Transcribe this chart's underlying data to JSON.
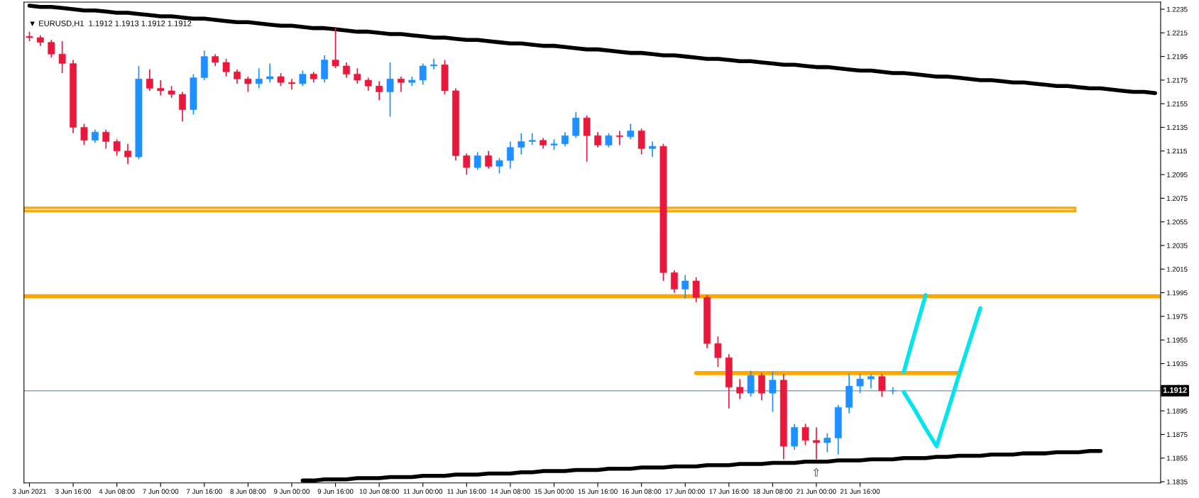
{
  "chart_data": {
    "type": "candlestick",
    "title": "▼ EURUSD,H1  1.1912 1.1913 1.1912 1.1912",
    "categories": [
      "3 Jun 2021",
      null,
      null,
      null,
      "3 Jun 16:00",
      null,
      null,
      null,
      "4 Jun 08:00",
      null,
      null,
      null,
      "7 Jun 00:00",
      null,
      null,
      null,
      "7 Jun 16:00",
      null,
      null,
      null,
      "8 Jun 08:00",
      null,
      null,
      null,
      "9 Jun 00:00",
      null,
      null,
      null,
      "9 Jun 16:00",
      null,
      null,
      null,
      "10 Jun 08:00",
      null,
      null,
      null,
      "11 Jun 00:00",
      null,
      null,
      null,
      "11 Jun 16:00",
      null,
      null,
      null,
      "14 Jun 08:00",
      null,
      null,
      null,
      "15 Jun 00:00",
      null,
      null,
      null,
      "15 Jun 16:00",
      null,
      null,
      null,
      "16 Jun 08:00",
      null,
      null,
      null,
      "17 Jun 00:00",
      null,
      null,
      null,
      "17 Jun 16:00",
      null,
      null,
      null,
      "18 Jun 08:00",
      null,
      null,
      null,
      "21 Jun 00:00",
      null,
      null,
      null,
      "21 Jun 16:00",
      null,
      null,
      null,
      null,
      null,
      null,
      null,
      null,
      null,
      null,
      null,
      null,
      null,
      null,
      null,
      null,
      null,
      null,
      null,
      null,
      null,
      null,
      null,
      null,
      null,
      null,
      null
    ],
    "ohlc": [
      [
        1.2212,
        1.2216,
        1.2208,
        1.2211
      ],
      [
        1.2211,
        1.2213,
        1.2204,
        1.2207
      ],
      [
        1.2207,
        1.2209,
        1.2194,
        1.2197
      ],
      [
        1.2197,
        1.2208,
        1.2181,
        1.2189
      ],
      [
        1.2189,
        1.2192,
        1.213,
        1.2135
      ],
      [
        1.2135,
        1.2138,
        1.212,
        1.2124
      ],
      [
        1.2124,
        1.2133,
        1.2122,
        1.2131
      ],
      [
        1.2131,
        1.2133,
        1.2117,
        1.2123
      ],
      [
        1.2123,
        1.2125,
        1.2111,
        1.2115
      ],
      [
        1.2115,
        1.2121,
        1.2104,
        1.211
      ],
      [
        1.211,
        1.2187,
        1.2108,
        1.2176
      ],
      [
        1.2176,
        1.2184,
        1.2166,
        1.2168
      ],
      [
        1.2168,
        1.2175,
        1.2162,
        1.2166
      ],
      [
        1.2166,
        1.217,
        1.216,
        1.2163
      ],
      [
        1.2163,
        1.2165,
        1.214,
        1.215
      ],
      [
        1.215,
        1.218,
        1.2146,
        1.2177
      ],
      [
        1.2177,
        1.22,
        1.2175,
        1.2195
      ],
      [
        1.2195,
        1.2197,
        1.2187,
        1.219
      ],
      [
        1.219,
        1.2193,
        1.2178,
        1.2182
      ],
      [
        1.2182,
        1.2184,
        1.2172,
        1.2176
      ],
      [
        1.2176,
        1.2178,
        1.2165,
        1.2172
      ],
      [
        1.2172,
        1.2185,
        1.2168,
        1.2176
      ],
      [
        1.2176,
        1.2189,
        1.2173,
        1.2178
      ],
      [
        1.2178,
        1.2181,
        1.217,
        1.2173
      ],
      [
        1.2173,
        1.2176,
        1.2167,
        1.2172
      ],
      [
        1.2172,
        1.2183,
        1.217,
        1.218
      ],
      [
        1.218,
        1.2182,
        1.2173,
        1.2176
      ],
      [
        1.2176,
        1.2196,
        1.2173,
        1.2192
      ],
      [
        1.2192,
        1.2219,
        1.2185,
        1.2187
      ],
      [
        1.2187,
        1.219,
        1.2177,
        1.218
      ],
      [
        1.218,
        1.2185,
        1.2172,
        1.2175
      ],
      [
        1.2175,
        1.2177,
        1.2166,
        1.217
      ],
      [
        1.217,
        1.2174,
        1.2158,
        1.2165
      ],
      [
        1.2165,
        1.219,
        1.2144,
        1.2176
      ],
      [
        1.2176,
        1.2178,
        1.2165,
        1.2173
      ],
      [
        1.2173,
        1.2178,
        1.217,
        1.2175
      ],
      [
        1.2175,
        1.2189,
        1.2171,
        1.2187
      ],
      [
        1.2187,
        1.2193,
        1.2184,
        1.2188
      ],
      [
        1.2188,
        1.2192,
        1.2163,
        1.2166
      ],
      [
        1.2166,
        1.2168,
        1.2107,
        1.2111
      ],
      [
        1.2111,
        1.2113,
        1.2095,
        1.2101
      ],
      [
        1.2101,
        1.2114,
        1.2099,
        1.2111
      ],
      [
        1.2111,
        1.2115,
        1.21,
        1.2102
      ],
      [
        1.2102,
        1.2109,
        1.2096,
        1.2107
      ],
      [
        1.2107,
        1.2123,
        1.21,
        1.2118
      ],
      [
        1.2118,
        1.213,
        1.2112,
        1.2123
      ],
      [
        1.2123,
        1.213,
        1.212,
        1.2124
      ],
      [
        1.2124,
        1.2126,
        1.2117,
        1.212
      ],
      [
        1.212,
        1.2125,
        1.2116,
        1.2121
      ],
      [
        1.2121,
        1.2131,
        1.2119,
        1.2128
      ],
      [
        1.2128,
        1.2148,
        1.2126,
        1.2143
      ],
      [
        1.2143,
        1.2145,
        1.2106,
        1.2128
      ],
      [
        1.2128,
        1.2131,
        1.2118,
        1.212
      ],
      [
        1.212,
        1.213,
        1.2118,
        1.2128
      ],
      [
        1.2128,
        1.2132,
        1.212,
        1.2127
      ],
      [
        1.2127,
        1.2138,
        1.2125,
        1.2132
      ],
      [
        1.2132,
        1.2134,
        1.2112,
        1.2117
      ],
      [
        1.2117,
        1.2123,
        1.211,
        1.2119
      ],
      [
        1.2119,
        1.2121,
        1.2005,
        1.2012
      ],
      [
        1.2012,
        1.2014,
        1.1995,
        1.1998
      ],
      [
        1.1998,
        1.201,
        1.199,
        1.2005
      ],
      [
        1.2005,
        1.2008,
        1.1987,
        1.1991
      ],
      [
        1.1991,
        1.1993,
        1.1948,
        1.1952
      ],
      [
        1.1952,
        1.1958,
        1.1932,
        1.194
      ],
      [
        1.194,
        1.1943,
        1.1897,
        1.1915
      ],
      [
        1.1915,
        1.1922,
        1.1905,
        1.191
      ],
      [
        1.191,
        1.1929,
        1.1907,
        1.1925
      ],
      [
        1.1925,
        1.1927,
        1.1904,
        1.191
      ],
      [
        1.191,
        1.1928,
        1.1894,
        1.1921
      ],
      [
        1.1921,
        1.1926,
        1.1854,
        1.1865
      ],
      [
        1.1865,
        1.1884,
        1.1862,
        1.1881
      ],
      [
        1.1881,
        1.1884,
        1.1866,
        1.187
      ],
      [
        1.187,
        1.1881,
        1.1854,
        1.1868
      ],
      [
        1.1868,
        1.1876,
        1.186,
        1.1872
      ],
      [
        1.1872,
        1.19,
        1.1858,
        1.1898
      ],
      [
        1.1898,
        1.1926,
        1.1893,
        1.1916
      ],
      [
        1.1916,
        1.1926,
        1.191,
        1.1922
      ],
      [
        1.1922,
        1.1926,
        1.1914,
        1.1924
      ],
      [
        1.1924,
        1.1926,
        1.1907,
        1.1912
      ],
      [
        1.1912,
        1.1915,
        1.1909,
        1.1912
      ],
      null,
      null,
      null,
      null,
      null,
      null,
      null,
      null,
      null,
      null,
      null,
      null,
      null,
      null,
      null,
      null,
      null,
      null,
      null,
      null,
      null,
      null,
      null,
      null
    ],
    "colors": [
      "#e8193c",
      "#e8193c",
      "#e8193c",
      "#e8193c",
      "#e8193c",
      "#e8193c",
      "#1e90ff",
      "#e8193c",
      "#e8193c",
      "#e8193c",
      "#1e90ff",
      "#e8193c",
      "#e8193c",
      "#e8193c",
      "#e8193c",
      "#1e90ff",
      "#1e90ff",
      "#e8193c",
      "#e8193c",
      "#e8193c",
      "#e8193c",
      "#1e90ff",
      "#1e90ff",
      "#e8193c",
      "#e8193c",
      "#1e90ff",
      "#e8193c",
      "#1e90ff",
      "#e8193c",
      "#e8193c",
      "#e8193c",
      "#e8193c",
      "#e8193c",
      "#1e90ff",
      "#e8193c",
      "#1e90ff",
      "#1e90ff",
      "#1e90ff",
      "#e8193c",
      "#e8193c",
      "#e8193c",
      "#1e90ff",
      "#e8193c",
      "#1e90ff",
      "#1e90ff",
      "#1e90ff",
      "#1e90ff",
      "#e8193c",
      "#1e90ff",
      "#1e90ff",
      "#1e90ff",
      "#e8193c",
      "#e8193c",
      "#1e90ff",
      "#e8193c",
      "#1e90ff",
      "#e8193c",
      "#1e90ff",
      "#e8193c",
      "#e8193c",
      "#1e90ff",
      "#e8193c",
      "#e8193c",
      "#e8193c",
      "#e8193c",
      "#e8193c",
      "#1e90ff",
      "#e8193c",
      "#1e90ff",
      "#e8193c",
      "#1e90ff",
      "#e8193c",
      "#e8193c",
      "#1e90ff",
      "#1e90ff",
      "#1e90ff",
      "#1e90ff",
      "#1e90ff",
      "#e8193c",
      "#1e90ff",
      null,
      null,
      null,
      null,
      null,
      null,
      null,
      null,
      null,
      null,
      null,
      null,
      null,
      null,
      null,
      null,
      null,
      null,
      null,
      null,
      null,
      null,
      null,
      null
    ],
    "series": [
      {
        "type": "line",
        "color": "#000000",
        "values": [
          1.2238,
          1.2237,
          1.2237,
          1.2236,
          1.2235,
          1.2234,
          1.2234,
          1.2233,
          1.2232,
          1.2232,
          1.2231,
          1.223,
          1.2229,
          1.2229,
          1.2228,
          1.2227,
          1.2227,
          1.2226,
          1.2225,
          1.2224,
          1.2224,
          1.2223,
          1.2222,
          1.2221,
          1.2221,
          1.222,
          1.2219,
          1.2219,
          1.2218,
          1.2217,
          1.2216,
          1.2216,
          1.2215,
          1.2214,
          1.2214,
          1.2213,
          1.2212,
          1.2211,
          1.2211,
          1.221,
          1.2209,
          1.2209,
          1.2208,
          1.2207,
          1.2206,
          1.2206,
          1.2205,
          1.2204,
          1.2204,
          1.2203,
          1.2202,
          1.2201,
          1.2201,
          1.22,
          1.2199,
          1.2198,
          1.2198,
          1.2197,
          1.2196,
          1.2196,
          1.2195,
          1.2194,
          1.2193,
          1.2193,
          1.2192,
          1.2191,
          1.2191,
          1.219,
          1.2189,
          1.2188,
          1.2188,
          1.2187,
          1.2186,
          1.2186,
          1.2185,
          1.2184,
          1.2183,
          1.2183,
          1.2182,
          1.2181,
          1.2181,
          1.218,
          1.2179,
          1.2178,
          1.2178,
          1.2177,
          1.2176,
          1.2175,
          1.2175,
          1.2174,
          1.2173,
          1.2173,
          1.2172,
          1.2171,
          1.217,
          1.217,
          1.2169,
          1.2168,
          1.2168,
          1.2167,
          1.2166,
          1.2165,
          1.2165,
          1.2164
        ]
      },
      {
        "type": "line",
        "color": "#000000",
        "values": [
          null,
          null,
          null,
          null,
          null,
          null,
          null,
          null,
          null,
          null,
          null,
          null,
          null,
          null,
          null,
          null,
          null,
          null,
          null,
          null,
          null,
          null,
          null,
          null,
          null,
          1.1836,
          1.1836,
          1.1837,
          1.1837,
          1.1837,
          1.1838,
          1.1838,
          1.1838,
          1.1839,
          1.1839,
          1.1839,
          1.184,
          1.184,
          1.184,
          1.1841,
          1.1841,
          1.1841,
          1.1842,
          1.1842,
          1.1842,
          1.1843,
          1.1843,
          1.1844,
          1.1844,
          1.1844,
          1.1845,
          1.1845,
          1.1845,
          1.1846,
          1.1846,
          1.1846,
          1.1847,
          1.1847,
          1.1847,
          1.1848,
          1.1848,
          1.1848,
          1.1849,
          1.1849,
          1.1849,
          1.185,
          1.185,
          1.185,
          1.1851,
          1.1851,
          1.1851,
          1.1852,
          1.1852,
          1.1852,
          1.1853,
          1.1853,
          1.1853,
          1.1854,
          1.1854,
          1.1854,
          1.1855,
          1.1855,
          1.1855,
          1.1856,
          1.1856,
          1.1857,
          1.1857,
          1.1857,
          1.1858,
          1.1858,
          1.1858,
          1.1859,
          1.1859,
          1.1859,
          1.186,
          1.186,
          1.186,
          1.1861,
          1.1861,
          null,
          null,
          null,
          null,
          null
        ]
      },
      {
        "type": "line",
        "color": "#ffa500",
        "values": [
          null,
          null,
          null,
          null,
          null,
          null,
          null,
          null,
          null,
          null,
          null,
          null,
          null,
          null,
          null,
          null,
          null,
          null,
          null,
          null,
          null,
          null,
          null,
          null,
          null,
          null,
          null,
          null,
          null,
          null,
          null,
          null,
          null,
          null,
          null,
          null,
          null,
          null,
          null,
          null,
          null,
          null,
          null,
          null,
          null,
          null,
          null,
          null,
          null,
          null,
          null,
          null,
          null,
          null,
          null,
          null,
          null,
          null,
          null,
          null,
          null,
          1.1927,
          1.1927,
          1.1927,
          1.1927,
          1.1927,
          1.1927,
          1.1927,
          1.1927,
          1.1927,
          1.1927,
          1.1927,
          1.1927,
          1.1927,
          1.1927,
          1.1927,
          1.1927,
          1.1927,
          1.1927,
          1.1927,
          1.1927,
          1.1927,
          1.1927,
          1.1927,
          1.1927,
          1.1927,
          null,
          null,
          null,
          null,
          null,
          null,
          null,
          null,
          null,
          null,
          null,
          null,
          null,
          null,
          null,
          null,
          null,
          null
        ]
      },
      {
        "type": "line",
        "color": "#00e5ee",
        "values": [
          null,
          null,
          null,
          null,
          null,
          null,
          null,
          null,
          null,
          null,
          null,
          null,
          null,
          null,
          null,
          null,
          null,
          null,
          null,
          null,
          null,
          null,
          null,
          null,
          null,
          null,
          null,
          null,
          null,
          null,
          null,
          null,
          null,
          null,
          null,
          null,
          null,
          null,
          null,
          null,
          null,
          null,
          null,
          null,
          null,
          null,
          null,
          null,
          null,
          null,
          null,
          null,
          null,
          null,
          null,
          null,
          null,
          null,
          null,
          null,
          null,
          null,
          null,
          null,
          null,
          null,
          null,
          null,
          null,
          null,
          null,
          null,
          null,
          null,
          null,
          null,
          null,
          null,
          null,
          null,
          1.1928,
          1.1961,
          1.1993,
          null,
          null,
          null,
          null,
          null,
          null,
          null,
          null,
          null,
          null,
          null,
          null,
          null,
          null,
          null,
          null,
          null,
          null,
          null,
          null,
          null
        ]
      },
      {
        "type": "line",
        "color": "#00e5ee",
        "values": [
          null,
          null,
          null,
          null,
          null,
          null,
          null,
          null,
          null,
          null,
          null,
          null,
          null,
          null,
          null,
          null,
          null,
          null,
          null,
          null,
          null,
          null,
          null,
          null,
          null,
          null,
          null,
          null,
          null,
          null,
          null,
          null,
          null,
          null,
          null,
          null,
          null,
          null,
          null,
          null,
          null,
          null,
          null,
          null,
          null,
          null,
          null,
          null,
          null,
          null,
          null,
          null,
          null,
          null,
          null,
          null,
          null,
          null,
          null,
          null,
          null,
          null,
          null,
          null,
          null,
          null,
          null,
          null,
          null,
          null,
          null,
          null,
          null,
          null,
          null,
          null,
          null,
          null,
          null,
          null,
          1.1911,
          1.1896,
          1.188,
          1.1865,
          1.1894,
          1.1924,
          1.1953,
          1.1982,
          null,
          null,
          null,
          null,
          null,
          null,
          null,
          null,
          null,
          null,
          null,
          null,
          null,
          null,
          null,
          null
        ]
      }
    ],
    "ref_lines": [
      {
        "axis": "y",
        "value": 1.1992,
        "color": "#ffa500"
      },
      {
        "axis": "y",
        "value": 1.1912,
        "label": "1.1912",
        "color": "#7f90a8"
      }
    ],
    "bands": [
      {
        "axis": "y",
        "from": 1.2064,
        "to": 1.2067,
        "color": "#ffa500"
      }
    ],
    "annotations": [
      "⇧"
    ],
    "ylim": [
      1.1834,
      1.2241
    ],
    "yticks": [
      1.1835,
      1.1855,
      1.1875,
      1.1895,
      1.1915,
      1.1935,
      1.1955,
      1.1975,
      1.1995,
      1.2015,
      1.2035,
      1.2055,
      1.2075,
      1.2095,
      1.2115,
      1.2135,
      1.2155,
      1.2175,
      1.2195,
      1.2215,
      1.2235
    ],
    "grid": false,
    "legend": false
  }
}
